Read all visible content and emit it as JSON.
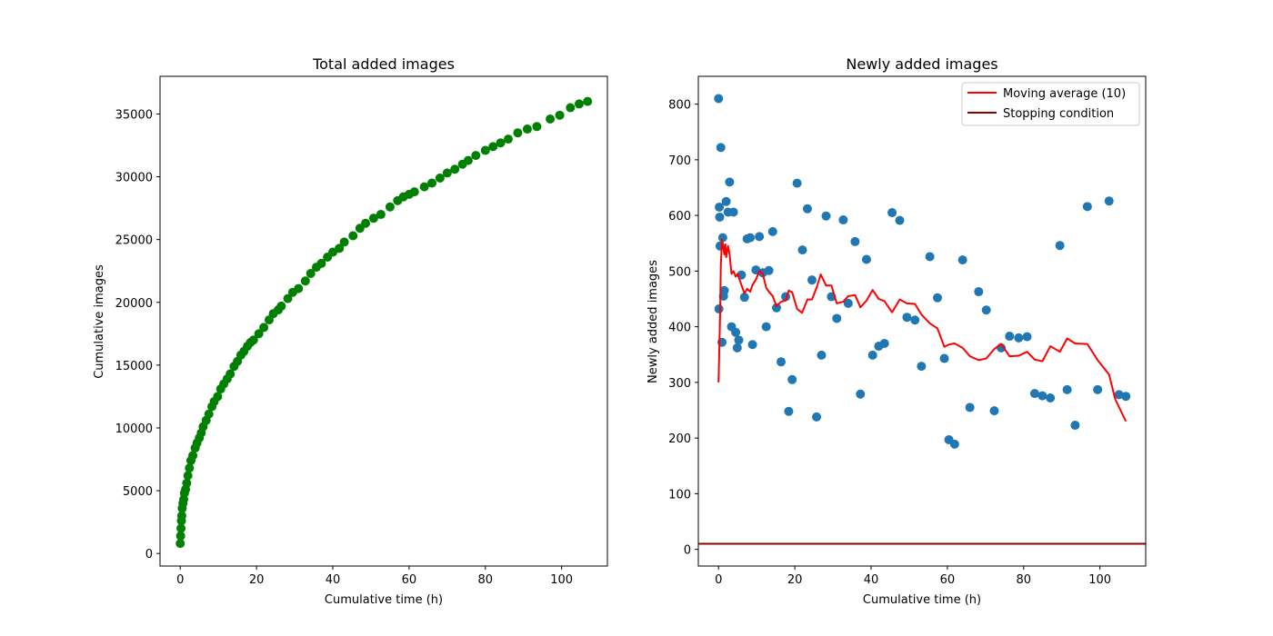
{
  "chart_data": [
    {
      "type": "scatter",
      "title": "Total added images",
      "xlabel": "Cumulative time (h)",
      "ylabel": "Cumulative images",
      "xlim": [
        -5.3,
        112.0
      ],
      "ylim": [
        -1000,
        38000
      ],
      "xticks": [
        0,
        20,
        40,
        60,
        80,
        100
      ],
      "yticks": [
        0,
        5000,
        10000,
        15000,
        20000,
        25000,
        30000,
        35000
      ],
      "grid": false,
      "color": "#008000",
      "series": [
        {
          "points": [
            [
              0.0,
              800
            ],
            [
              0.1,
              1400
            ],
            [
              0.2,
              2000
            ],
            [
              0.3,
              2600
            ],
            [
              0.4,
              3000
            ],
            [
              0.5,
              3600
            ],
            [
              0.7,
              4000
            ],
            [
              0.9,
              4300
            ],
            [
              1.1,
              4800
            ],
            [
              1.4,
              5100
            ],
            [
              1.7,
              5600
            ],
            [
              2.0,
              6200
            ],
            [
              2.4,
              6800
            ],
            [
              2.8,
              7400
            ],
            [
              3.3,
              7800
            ],
            [
              3.9,
              8400
            ],
            [
              4.4,
              8800
            ],
            [
              5.0,
              9200
            ],
            [
              5.5,
              9600
            ],
            [
              6.0,
              10100
            ],
            [
              6.8,
              10600
            ],
            [
              7.5,
              11100
            ],
            [
              8.3,
              11700
            ],
            [
              8.9,
              12100
            ],
            [
              9.8,
              12500
            ],
            [
              10.6,
              13100
            ],
            [
              11.4,
              13500
            ],
            [
              12.3,
              13900
            ],
            [
              13.1,
              14300
            ],
            [
              14.1,
              14900
            ],
            [
              15.0,
              15300
            ],
            [
              15.9,
              15800
            ],
            [
              16.7,
              16100
            ],
            [
              17.6,
              16500
            ],
            [
              18.4,
              16800
            ],
            [
              19.2,
              17000
            ],
            [
              20.6,
              17500
            ],
            [
              21.9,
              18000
            ],
            [
              23.3,
              18600
            ],
            [
              24.4,
              19100
            ],
            [
              25.7,
              19400
            ],
            [
              26.5,
              19700
            ],
            [
              28.2,
              20300
            ],
            [
              29.5,
              20800
            ],
            [
              31.0,
              21100
            ],
            [
              32.8,
              21700
            ],
            [
              34.2,
              22300
            ],
            [
              35.7,
              22800
            ],
            [
              37.0,
              23100
            ],
            [
              38.6,
              23600
            ],
            [
              40.0,
              24000
            ],
            [
              41.7,
              24300
            ],
            [
              43.0,
              24800
            ],
            [
              45.3,
              25300
            ],
            [
              47.1,
              25900
            ],
            [
              48.6,
              26300
            ],
            [
              50.7,
              26700
            ],
            [
              52.6,
              27000
            ],
            [
              55.0,
              27600
            ],
            [
              57.0,
              28100
            ],
            [
              58.5,
              28400
            ],
            [
              60.0,
              28600
            ],
            [
              61.4,
              28800
            ],
            [
              64.0,
              29200
            ],
            [
              66.0,
              29500
            ],
            [
              68.1,
              29900
            ],
            [
              70.0,
              30300
            ],
            [
              72.0,
              30600
            ],
            [
              74.0,
              31000
            ],
            [
              75.5,
              31300
            ],
            [
              77.5,
              31700
            ],
            [
              80.0,
              32100
            ],
            [
              82.0,
              32400
            ],
            [
              84.0,
              32700
            ],
            [
              86.0,
              33000
            ],
            [
              88.5,
              33500
            ],
            [
              91.0,
              33800
            ],
            [
              93.5,
              34000
            ],
            [
              97.0,
              34600
            ],
            [
              99.5,
              34900
            ],
            [
              102.3,
              35500
            ],
            [
              104.6,
              35800
            ],
            [
              106.8,
              36000
            ]
          ]
        }
      ]
    },
    {
      "type": "scatter",
      "title": "Newly added images",
      "xlabel": "Cumulative time (h)",
      "ylabel": "Newly added images",
      "xlim": [
        -5.3,
        112.0
      ],
      "ylim": [
        -30,
        850
      ],
      "xticks": [
        0,
        20,
        40,
        60,
        80,
        100
      ],
      "yticks": [
        0,
        100,
        200,
        300,
        400,
        500,
        600,
        700,
        800
      ],
      "grid": false,
      "legend_position": "upper right",
      "legend": [
        "Moving average (10)",
        "Stopping condition"
      ],
      "series": [
        {
          "name": "points",
          "color": "#1f77b4",
          "points": [
            [
              0.0,
              810
            ],
            [
              0.1,
              432
            ],
            [
              0.2,
              615
            ],
            [
              0.3,
              597
            ],
            [
              0.4,
              545
            ],
            [
              0.6,
              722
            ],
            [
              0.9,
              372
            ],
            [
              1.1,
              560
            ],
            [
              1.3,
              455
            ],
            [
              1.5,
              465
            ],
            [
              2.0,
              625
            ],
            [
              2.5,
              606
            ],
            [
              2.9,
              660
            ],
            [
              3.4,
              400
            ],
            [
              3.9,
              606
            ],
            [
              4.5,
              390
            ],
            [
              4.9,
              362
            ],
            [
              5.3,
              376
            ],
            [
              6.0,
              493
            ],
            [
              6.8,
              453
            ],
            [
              7.5,
              558
            ],
            [
              8.3,
              560
            ],
            [
              8.9,
              368
            ],
            [
              9.8,
              502
            ],
            [
              10.7,
              562
            ],
            [
              11.6,
              497
            ],
            [
              12.5,
              400
            ],
            [
              13.2,
              501
            ],
            [
              14.2,
              571
            ],
            [
              15.2,
              434
            ],
            [
              16.4,
              337
            ],
            [
              17.6,
              454
            ],
            [
              18.4,
              248
            ],
            [
              19.3,
              305
            ],
            [
              20.6,
              658
            ],
            [
              22.0,
              538
            ],
            [
              23.3,
              612
            ],
            [
              24.5,
              484
            ],
            [
              25.7,
              238
            ],
            [
              27.0,
              349
            ],
            [
              28.2,
              599
            ],
            [
              29.6,
              454
            ],
            [
              31.0,
              415
            ],
            [
              32.7,
              592
            ],
            [
              34.0,
              442
            ],
            [
              35.8,
              553
            ],
            [
              37.2,
              279
            ],
            [
              38.8,
              521
            ],
            [
              40.4,
              349
            ],
            [
              42.0,
              365
            ],
            [
              43.5,
              370
            ],
            [
              45.5,
              605
            ],
            [
              47.5,
              591
            ],
            [
              49.4,
              417
            ],
            [
              51.5,
              412
            ],
            [
              53.2,
              329
            ],
            [
              55.4,
              526
            ],
            [
              57.4,
              452
            ],
            [
              59.2,
              343
            ],
            [
              60.4,
              197
            ],
            [
              61.9,
              189
            ],
            [
              64.0,
              520
            ],
            [
              65.9,
              255
            ],
            [
              68.2,
              463
            ],
            [
              70.2,
              430
            ],
            [
              72.3,
              249
            ],
            [
              74.1,
              362
            ],
            [
              76.3,
              383
            ],
            [
              78.7,
              380
            ],
            [
              80.9,
              382
            ],
            [
              82.9,
              280
            ],
            [
              84.9,
              276
            ],
            [
              87.0,
              272
            ],
            [
              89.5,
              546
            ],
            [
              91.4,
              287
            ],
            [
              93.5,
              223
            ],
            [
              96.7,
              616
            ],
            [
              99.4,
              287
            ],
            [
              102.4,
              626
            ],
            [
              105.0,
              278
            ],
            [
              106.8,
              275
            ]
          ]
        },
        {
          "name": "Moving average (10)",
          "color": "#ff0000",
          "type": "line",
          "points": [
            [
              0.0,
              300
            ],
            [
              0.4,
              420
            ],
            [
              0.6,
              510
            ],
            [
              0.9,
              557
            ],
            [
              1.1,
              550
            ],
            [
              1.3,
              540
            ],
            [
              1.5,
              530
            ],
            [
              1.8,
              548
            ],
            [
              2.0,
              525
            ],
            [
              2.5,
              545
            ],
            [
              2.9,
              530
            ],
            [
              3.4,
              495
            ],
            [
              3.9,
              500
            ],
            [
              4.5,
              490
            ],
            [
              5.0,
              495
            ],
            [
              5.5,
              485
            ],
            [
              6.0,
              475
            ],
            [
              6.8,
              460
            ],
            [
              7.5,
              468
            ],
            [
              8.3,
              463
            ],
            [
              8.9,
              475
            ],
            [
              9.8,
              485
            ],
            [
              10.7,
              500
            ],
            [
              11.6,
              495
            ],
            [
              12.5,
              470
            ],
            [
              13.2,
              463
            ],
            [
              14.2,
              455
            ],
            [
              15.2,
              437
            ],
            [
              16.4,
              445
            ],
            [
              17.6,
              447
            ],
            [
              18.4,
              465
            ],
            [
              19.3,
              462
            ],
            [
              20.6,
              432
            ],
            [
              21.9,
              425
            ],
            [
              23.3,
              449
            ],
            [
              24.5,
              449
            ],
            [
              25.7,
              470
            ],
            [
              26.8,
              494
            ],
            [
              28.2,
              474
            ],
            [
              29.6,
              474
            ],
            [
              31.0,
              442
            ],
            [
              32.7,
              445
            ],
            [
              34.0,
              455
            ],
            [
              35.8,
              457
            ],
            [
              37.2,
              435
            ],
            [
              38.8,
              447
            ],
            [
              40.4,
              466
            ],
            [
              42.0,
              450
            ],
            [
              43.5,
              446
            ],
            [
              45.5,
              426
            ],
            [
              47.5,
              449
            ],
            [
              49.4,
              442
            ],
            [
              51.5,
              441
            ],
            [
              53.2,
              422
            ],
            [
              55.4,
              406
            ],
            [
              57.4,
              397
            ],
            [
              59.2,
              364
            ],
            [
              60.4,
              368
            ],
            [
              61.9,
              370
            ],
            [
              64.0,
              362
            ],
            [
              65.9,
              347
            ],
            [
              68.2,
              340
            ],
            [
              70.2,
              343
            ],
            [
              72.3,
              360
            ],
            [
              74.1,
              369
            ],
            [
              76.3,
              347
            ],
            [
              78.7,
              348
            ],
            [
              80.9,
              355
            ],
            [
              82.9,
              341
            ],
            [
              84.9,
              338
            ],
            [
              87.0,
              365
            ],
            [
              89.5,
              355
            ],
            [
              91.4,
              379
            ],
            [
              93.5,
              370
            ],
            [
              96.7,
              369
            ],
            [
              99.4,
              340
            ],
            [
              102.4,
              314
            ],
            [
              104.0,
              270
            ],
            [
              106.8,
              230
            ]
          ]
        },
        {
          "name": "Stopping condition",
          "color": "#8b0000",
          "type": "hline",
          "value": 10
        }
      ]
    }
  ]
}
